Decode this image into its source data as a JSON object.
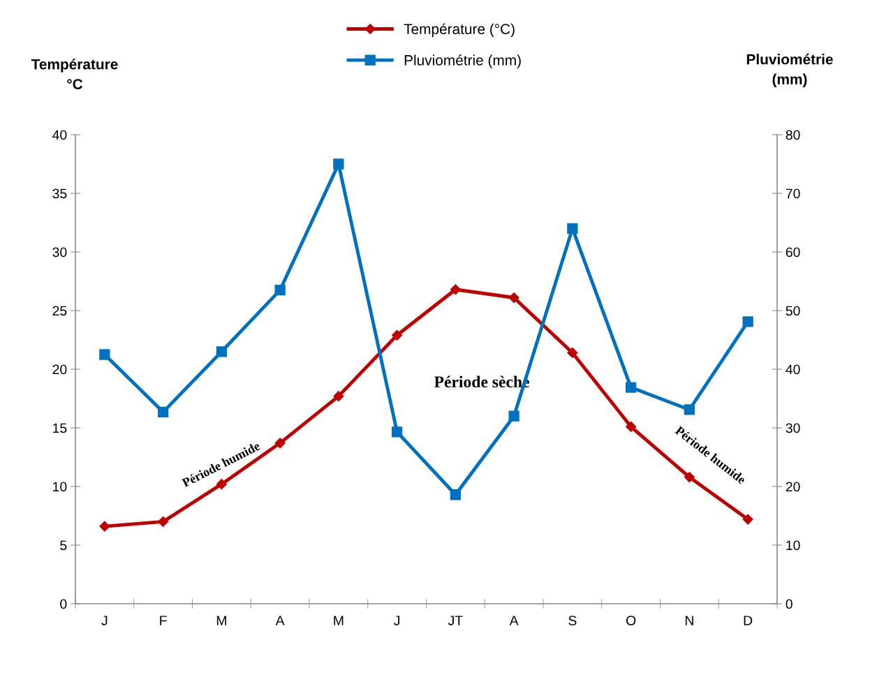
{
  "chart_data": {
    "type": "line",
    "ylabel": "Température\n°C",
    "y2label": "Pluviométrie\n(mm)",
    "categories": [
      "J",
      "F",
      "M",
      "A",
      "M",
      "J",
      "JT",
      "A",
      "S",
      "O",
      "N",
      "D"
    ],
    "series": [
      {
        "name": "Température (°C)",
        "color": "#c00000",
        "marker": "diamond",
        "values": [
          6.6,
          7.0,
          10.2,
          13.7,
          17.7,
          22.9,
          26.8,
          26.1,
          21.4,
          15.1,
          10.8,
          7.2
        ]
      },
      {
        "name": "Pluviométrie (mm)",
        "color": "#0070c0",
        "marker": "square",
        "axis": "y2",
        "values": [
          42.5,
          32.7,
          43.0,
          53.5,
          75,
          29.3,
          18.6,
          32.0,
          64,
          36.9,
          33.1,
          48.1
        ]
      }
    ],
    "ylim": [
      0,
      40
    ],
    "yticks": [
      0,
      5,
      10,
      15,
      20,
      25,
      30,
      35,
      40
    ],
    "y2lim": [
      0,
      80
    ],
    "y2ticks": [
      0,
      10,
      20,
      30,
      40,
      50,
      60,
      70,
      80
    ],
    "annotations": [
      "Période humide",
      "Période sèche",
      "Période humide"
    ],
    "legend": "top",
    "grid": false,
    "line_style": "solid"
  }
}
